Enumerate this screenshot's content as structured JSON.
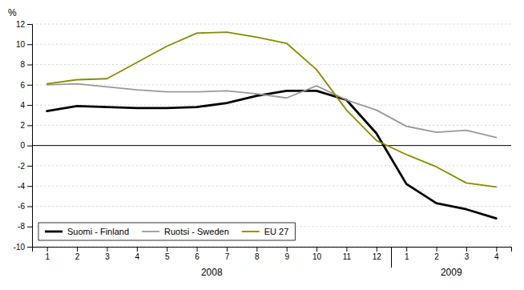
{
  "chart_data": {
    "type": "line",
    "y_label": "%",
    "categories": [
      "1",
      "2",
      "3",
      "4",
      "5",
      "6",
      "7",
      "8",
      "9",
      "10",
      "11",
      "12",
      "1",
      "2",
      "3",
      "4"
    ],
    "series": [
      {
        "name": "Suomi - Finland",
        "color": "#000000",
        "values": [
          3.4,
          3.9,
          3.8,
          3.7,
          3.7,
          3.8,
          4.2,
          4.9,
          5.4,
          5.4,
          4.5,
          1.2,
          -3.8,
          -5.7,
          -6.3,
          -7.2
        ]
      },
      {
        "name": "Ruotsi - Sweden",
        "color": "#999999",
        "values": [
          6.0,
          6.1,
          5.8,
          5.5,
          5.3,
          5.3,
          5.4,
          5.1,
          4.7,
          5.9,
          4.5,
          3.5,
          1.9,
          1.3,
          1.5,
          0.8
        ]
      },
      {
        "name": "EU 27",
        "color": "#8B8B00",
        "values": [
          6.1,
          6.5,
          6.6,
          8.2,
          9.8,
          11.1,
          11.2,
          10.7,
          10.1,
          7.5,
          3.5,
          0.5,
          -0.9,
          -2.1,
          -3.7,
          -4.1
        ]
      }
    ],
    "annotations": [
      "2008",
      "2009"
    ],
    "ylim": [
      -10,
      12
    ],
    "yticks": [
      -10,
      -8,
      -6,
      -4,
      -2,
      0,
      2,
      4,
      6,
      8,
      10,
      12
    ],
    "grid": true,
    "legend": "lower left"
  }
}
